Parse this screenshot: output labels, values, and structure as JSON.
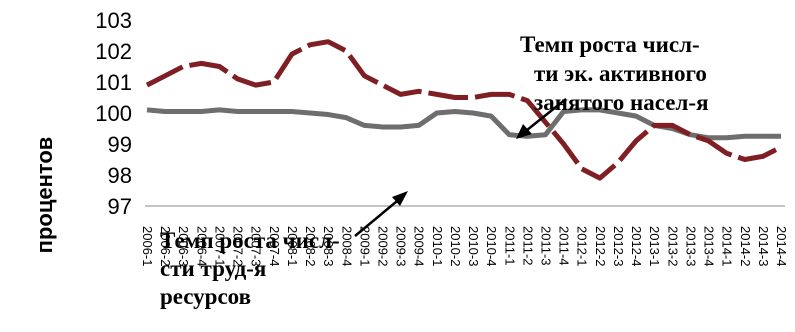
{
  "chart_data": {
    "type": "line",
    "ylabel": "процентов",
    "ylim": [
      97,
      103
    ],
    "yticks": [
      "103",
      "102",
      "101",
      "100",
      "99",
      "98",
      "97"
    ],
    "grid": false,
    "legend": "none",
    "x": [
      "2006-1",
      "2006-2",
      "2006-3",
      "2006-4",
      "2007-1",
      "2007-2",
      "2007-3",
      "2007-4",
      "2008-1",
      "2008-2",
      "2008-3",
      "2008-4",
      "2009-1",
      "2009-2",
      "2009-3",
      "2009-4",
      "2010-1",
      "2010-2",
      "2010-3",
      "2010-4",
      "2011-1",
      "2011-2",
      "2011-3",
      "2011-4",
      "2012-1",
      "2012-2",
      "2012-3",
      "2012-4",
      "2013-1",
      "2013-2",
      "2013-3",
      "2013-4",
      "2014-1",
      "2014-2",
      "2014-3",
      "2014-4"
    ],
    "series": [
      {
        "name": "",
        "color": "#7f1f23",
        "values": [
          100.9,
          101.2,
          101.5,
          101.6,
          101.5,
          101.1,
          100.9,
          101.0,
          101.9,
          102.2,
          102.3,
          102.0,
          101.2,
          100.9,
          100.6,
          100.7,
          100.6,
          100.5,
          100.5,
          100.6,
          100.6,
          100.4,
          99.7,
          99.0,
          98.2,
          97.9,
          98.4,
          99.1,
          99.6,
          99.6,
          99.3,
          99.1,
          98.7,
          98.5,
          98.6,
          98.9
        ]
      },
      {
        "name": "",
        "color": "#6e6e6e",
        "values": [
          100.1,
          100.05,
          100.05,
          100.05,
          100.1,
          100.05,
          100.05,
          100.05,
          100.05,
          100.0,
          99.95,
          99.85,
          99.6,
          99.55,
          99.55,
          99.6,
          100.0,
          100.05,
          100.0,
          99.9,
          99.3,
          99.25,
          99.3,
          100.05,
          100.1,
          100.1,
          100.0,
          99.9,
          99.6,
          99.5,
          99.3,
          99.2,
          99.2,
          99.25,
          99.25,
          99.25
        ]
      }
    ],
    "annotations": [
      {
        "id": "employed",
        "lines": [
          "Темп роста числ-",
          "ти эк. активного",
          "занятого насел-я"
        ]
      },
      {
        "id": "labor",
        "lines": [
          "Темп роста числ-",
          "сти труд-я",
          "ресурсов"
        ]
      }
    ]
  }
}
